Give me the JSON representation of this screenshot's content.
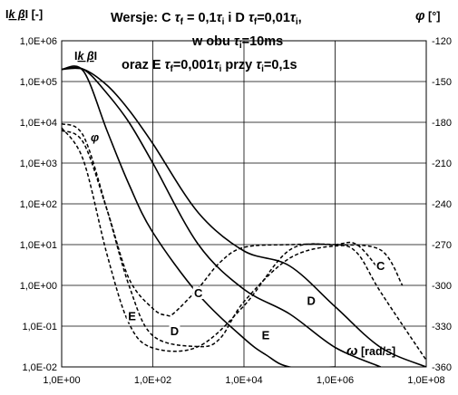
{
  "chart_data": {
    "type": "line",
    "title": {
      "line1": {
        "pre": "Wersje: C  ",
        "sym1": "τ",
        "sub1": "f",
        "mid": " = 0,1",
        "sym2": "τ",
        "sub2": "i",
        "mid2": "  i  D  ",
        "sym3": "τ",
        "sub3": "f",
        "mid3": "=0,01",
        "sym4": "τ",
        "sub4": "i",
        "post": ","
      },
      "line2": {
        "pre": "w obu ",
        "sym": "τ",
        "sub": "i",
        "post": "=10ms"
      },
      "line3": {
        "pre": "oraz E   ",
        "sym1": "τ",
        "sub1": "f",
        "mid": "=0,001",
        "sym2": "τ",
        "sub2": "i",
        "mid2": "  przy ",
        "sym3": "τ",
        "sub3": "i",
        "post": "=0,1s"
      }
    },
    "ylabel_left": {
      "pre": "I",
      "sym": "k β",
      "post": "I [-]"
    },
    "ylabel_left_inner": {
      "pre": "I",
      "sym": "k β",
      "post": "I"
    },
    "ylabel_right": {
      "sym": "φ",
      "post": " [°]"
    },
    "xlabel": {
      "sym": "ω",
      "post": " [rad/s]"
    },
    "phi_marker": "φ",
    "x_scale": "log",
    "xlim": [
      1,
      100000000
    ],
    "y_left_scale": "log",
    "ylim_left": [
      0.01,
      1000000
    ],
    "ylim_right": [
      -360,
      -120
    ],
    "grid": true,
    "x_ticks": [
      "1,0E+00",
      "1,0E+02",
      "1,0E+04",
      "1,0E+06",
      "1,0E+08"
    ],
    "y_left_ticks": [
      "1,0E+06",
      "1,0E+05",
      "1,0E+04",
      "1,0E+03",
      "1,0E+02",
      "1,0E+01",
      "1,0E+00",
      "1,0E-01",
      "1,0E-02"
    ],
    "y_right_ticks": [
      "-120",
      "-150",
      "-180",
      "-210",
      "-240",
      "-270",
      "-300",
      "-330",
      "-360"
    ],
    "series": [
      {
        "name": "C",
        "axis": "left",
        "style": "solid",
        "x": [
          1,
          3,
          10,
          30,
          100,
          1000,
          10000,
          100000,
          1000000,
          10000000,
          100000000
        ],
        "y": [
          200000,
          200000,
          80000,
          20000,
          3000,
          60,
          7,
          3,
          0.3,
          0.03,
          0.01
        ]
      },
      {
        "name": "D",
        "axis": "left",
        "style": "solid",
        "x": [
          1,
          3,
          10,
          30,
          100,
          1000,
          10000,
          100000,
          1000000,
          10000000
        ],
        "y": [
          200000,
          200000,
          50000,
          10000,
          1000,
          10,
          0.8,
          0.2,
          0.03,
          0.01
        ]
      },
      {
        "name": "E",
        "axis": "left",
        "style": "solid",
        "x": [
          1,
          3,
          10,
          30,
          100,
          1000,
          10000,
          30000,
          100000,
          1000000
        ],
        "y": [
          200000,
          180000,
          6000,
          300,
          20,
          0.6,
          0.05,
          0.02,
          0.01,
          0.01
        ]
      },
      {
        "name": "C",
        "axis": "right",
        "style": "dashed",
        "x": [
          1,
          3,
          10,
          30,
          100,
          200,
          300,
          1000,
          3000,
          10000,
          100000,
          1000000,
          10000000,
          30000000
        ],
        "y": [
          -186,
          -195,
          -245,
          -295,
          -317,
          -322,
          -320,
          -302,
          -283,
          -272,
          -270,
          -270,
          -274,
          -300
        ]
      },
      {
        "name": "D",
        "axis": "right",
        "style": "dashed",
        "x": [
          1,
          3,
          10,
          30,
          100,
          1000,
          3000,
          10000,
          100000,
          1000000,
          3000000,
          10000000,
          100000000
        ],
        "y": [
          -181,
          -190,
          -245,
          -300,
          -337,
          -345,
          -339,
          -312,
          -280,
          -271,
          -276,
          -305,
          -355
        ]
      },
      {
        "name": "E",
        "axis": "right",
        "style": "dashed",
        "x": [
          1,
          3,
          10,
          30,
          100,
          1000,
          10000,
          100000,
          1000000,
          3000000,
          10000000
        ],
        "y": [
          -184,
          -208,
          -278,
          -328,
          -346,
          -345,
          -315,
          -274,
          -270,
          -270,
          -290
        ]
      }
    ],
    "curve_labels": [
      {
        "text": "C",
        "x": 10000000,
        "y_left": 2.5
      },
      {
        "text": "D",
        "x": 300000,
        "y_left": 0.35
      },
      {
        "text": "E",
        "x": 30000,
        "y_left": 0.05
      },
      {
        "text": "C",
        "x": 1000,
        "y_right": -308
      },
      {
        "text": "D",
        "x": 300,
        "y_right": -336
      },
      {
        "text": "E",
        "x": 35,
        "y_right": -325
      }
    ]
  }
}
